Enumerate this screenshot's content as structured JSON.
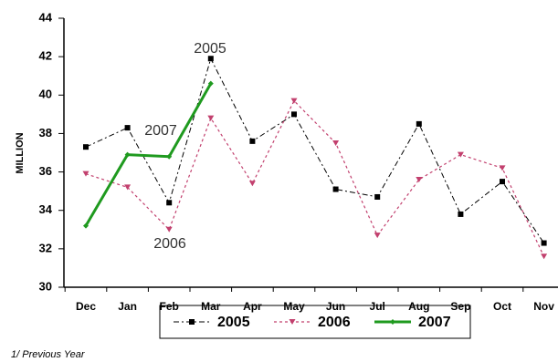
{
  "chart_data": {
    "type": "line",
    "y_label": "MILLION",
    "footnote": "1/ Previous Year",
    "categories": [
      "Dec",
      "Jan",
      "Feb",
      "Mar",
      "Apr",
      "May",
      "Jun",
      "Jul",
      "Aug",
      "Sep",
      "Oct",
      "Nov"
    ],
    "series": [
      {
        "name": "2005",
        "color": "#000000",
        "values": [
          37.3,
          38.3,
          34.4,
          41.9,
          37.6,
          39.0,
          35.1,
          34.7,
          38.5,
          33.8,
          35.5,
          32.3
        ]
      },
      {
        "name": "2006",
        "color": "#c2406e",
        "values": [
          35.9,
          35.2,
          33.0,
          38.8,
          35.4,
          39.7,
          37.5,
          32.7,
          35.6,
          36.9,
          36.2,
          31.6
        ]
      },
      {
        "name": "2007",
        "color": "#1f9a1f",
        "values": [
          33.2,
          36.9,
          36.8,
          40.6,
          null,
          null,
          null,
          null,
          null,
          null,
          null,
          null
        ]
      }
    ],
    "annotations": [
      "2005",
      "2007",
      "2006"
    ],
    "ylim": [
      30,
      44
    ],
    "yticks": [
      30,
      32,
      34,
      36,
      38,
      40,
      42,
      44
    ]
  }
}
